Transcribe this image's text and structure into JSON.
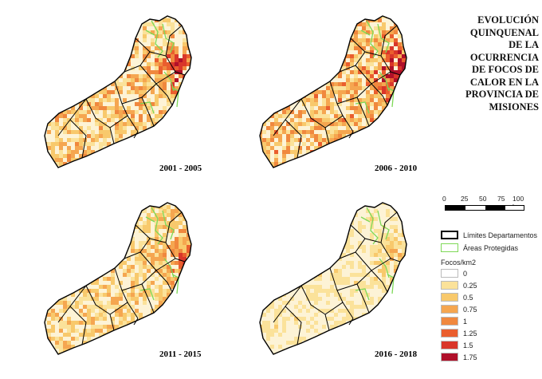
{
  "title_lines": [
    "EVOLUCIÓN",
    "QUINQUENAL",
    "DE LA",
    "OCURRENCIA",
    "DE FOCOS DE",
    "CALOR EN LA",
    "PROVINCIA DE",
    "MISIONES"
  ],
  "panels": [
    {
      "period": "2001 - 2005",
      "intensity": 0.55
    },
    {
      "period": "2006 - 2010",
      "intensity": 0.65
    },
    {
      "period": "2011 - 2015",
      "intensity": 0.45
    },
    {
      "period": "2016 - 2018",
      "intensity": 0.25
    }
  ],
  "scale": {
    "ticks": [
      "0",
      "25",
      "50",
      "75",
      "100 km"
    ]
  },
  "legend": {
    "boundary_label": "Límites Departamentos",
    "protected_label": "Áreas Protegidas",
    "density_title": "Focos/km2",
    "classes": [
      {
        "label": "0",
        "color": "#ffffff"
      },
      {
        "label": "0.25",
        "color": "#fbe29a"
      },
      {
        "label": "0.5",
        "color": "#f8c96c"
      },
      {
        "label": "0.75",
        "color": "#f5a650"
      },
      {
        "label": "1",
        "color": "#f0883e"
      },
      {
        "label": "1.25",
        "color": "#ea5e2e"
      },
      {
        "label": "1.5",
        "color": "#d9362a"
      },
      {
        "label": "1.75",
        "color": "#b0102a"
      }
    ],
    "boundary_color": "#000000",
    "protected_color": "#7ed957"
  }
}
